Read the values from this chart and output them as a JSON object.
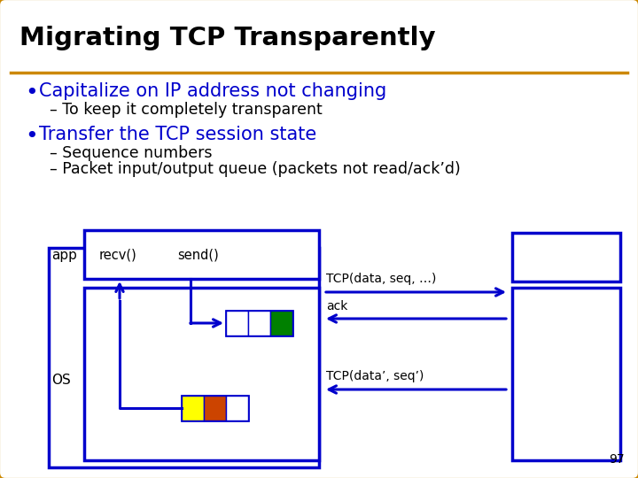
{
  "title": "Migrating TCP Transparently",
  "title_color": "#000000",
  "outer_border_color": "#CC8800",
  "inner_border_color": "#0000CC",
  "bg_color": "#ffffff",
  "bullet1": "Capitalize on IP address not changing",
  "sub1": "– To keep it completely transparent",
  "bullet2": "Transfer the TCP session state",
  "sub2a": "– Sequence numbers",
  "sub2b": "– Packet input/output queue (packets not read/ack’d)",
  "bullet_color": "#0000CC",
  "sub_color": "#000000",
  "label_app": "app",
  "label_os": "OS",
  "label_recv": "recv()",
  "label_send": "send()",
  "arrow_color": "#0000CC",
  "tcp1_label": "TCP(data, seq, …)",
  "ack_label": "ack",
  "tcp2_label": "TCP(data’, seq’)",
  "page_num": "97",
  "queue_colors_top": [
    "#ffffff",
    "#ffffff",
    "#008000"
  ],
  "queue_colors_bot": [
    "#ffff00",
    "#cc4400",
    "#ffffff"
  ]
}
